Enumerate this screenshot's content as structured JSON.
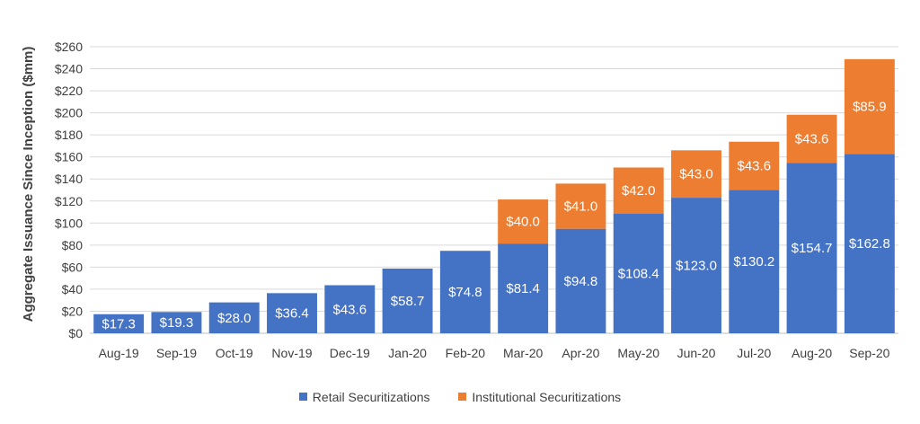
{
  "chart_data": {
    "type": "bar",
    "stacked": true,
    "title": "",
    "xlabel": "",
    "ylabel": "Aggregate Issuance Since Inception ($mm)",
    "ylim": [
      0,
      260
    ],
    "ytick_step": 20,
    "ytick_prefix": "$",
    "grid": true,
    "legend_position": "bottom",
    "categories": [
      "Aug-19",
      "Sep-19",
      "Oct-19",
      "Nov-19",
      "Dec-19",
      "Jan-20",
      "Feb-20",
      "Mar-20",
      "Apr-20",
      "May-20",
      "Jun-20",
      "Jul-20",
      "Aug-20",
      "Sep-20"
    ],
    "series": [
      {
        "name": "Retail Securitizations",
        "color": "#4472C4",
        "values": [
          17.3,
          19.3,
          28.0,
          36.4,
          43.6,
          58.7,
          74.8,
          81.4,
          94.8,
          108.4,
          123.0,
          130.2,
          154.7,
          162.8
        ],
        "labels": [
          "$17.3",
          "$19.3",
          "$28.0",
          "$36.4",
          "$43.6",
          "$58.7",
          "$74.8",
          "$81.4",
          "$94.8",
          "$108.4",
          "$123.0",
          "$130.2",
          "$154.7",
          "$162.8"
        ]
      },
      {
        "name": "Institutional Securitizations",
        "color": "#ED7D31",
        "values": [
          0,
          0,
          0,
          0,
          0,
          0,
          0,
          40.0,
          41.0,
          42.0,
          43.0,
          43.6,
          43.6,
          85.9
        ],
        "labels": [
          "",
          "",
          "",
          "",
          "",
          "",
          "",
          "$40.0",
          "$41.0",
          "$42.0",
          "$43.0",
          "$43.6",
          "$43.6",
          "$85.9"
        ]
      }
    ]
  }
}
